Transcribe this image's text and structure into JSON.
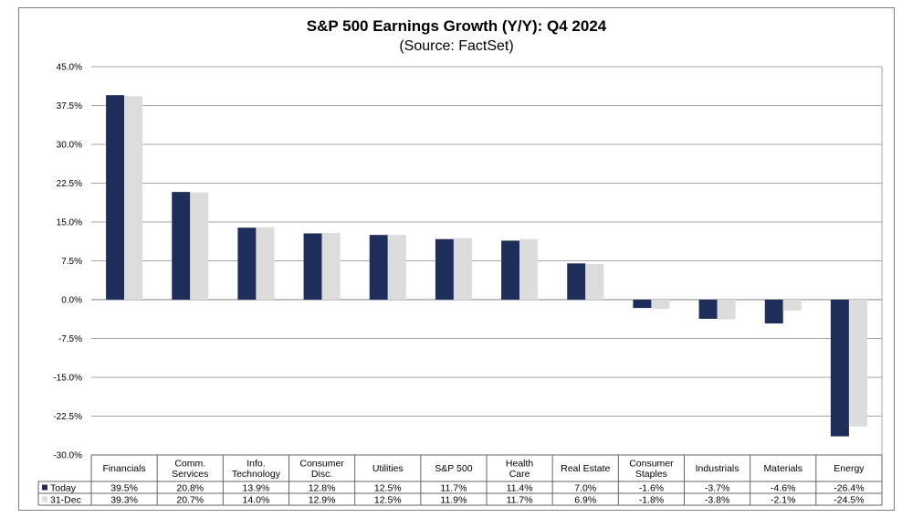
{
  "chart_data": {
    "type": "bar",
    "title": "S&P 500 Earnings Growth (Y/Y): Q4 2024",
    "subtitle": "(Source: FactSet)",
    "xlabel": "",
    "ylabel": "",
    "ylim": [
      -30,
      45
    ],
    "yticks": [
      "45.0%",
      "37.5%",
      "30.0%",
      "22.5%",
      "15.0%",
      "7.5%",
      "0.0%",
      "-7.5%",
      "-15.0%",
      "-22.5%",
      "-30.0%"
    ],
    "ytick_values": [
      45,
      37.5,
      30,
      22.5,
      15,
      7.5,
      0,
      -7.5,
      -15,
      -22.5,
      -30
    ],
    "grid": true,
    "legend": "table-bottom-left",
    "categories": [
      [
        "Financials"
      ],
      [
        "Comm.",
        "Services"
      ],
      [
        "Info.",
        "Technology"
      ],
      [
        "Consumer",
        "Disc."
      ],
      [
        "Utilities"
      ],
      [
        "S&P 500"
      ],
      [
        "Health",
        "Care"
      ],
      [
        "Real Estate"
      ],
      [
        "Consumer",
        "Staples"
      ],
      [
        "Industrials"
      ],
      [
        "Materials"
      ],
      [
        "Energy"
      ]
    ],
    "series": [
      {
        "name": "Today",
        "color": "#1f2d5a",
        "values": [
          39.5,
          20.8,
          13.9,
          12.8,
          12.5,
          11.7,
          11.4,
          7.0,
          -1.6,
          -3.7,
          -4.6,
          -26.4
        ],
        "labels": [
          "39.5%",
          "20.8%",
          "13.9%",
          "12.8%",
          "12.5%",
          "11.7%",
          "11.4%",
          "7.0%",
          "-1.6%",
          "-3.7%",
          "-4.6%",
          "-26.4%"
        ]
      },
      {
        "name": "31-Dec",
        "color": "#dcdcdc",
        "values": [
          39.3,
          20.7,
          14.0,
          12.9,
          12.5,
          11.9,
          11.7,
          6.9,
          -1.8,
          -3.8,
          -2.1,
          -24.5
        ],
        "labels": [
          "39.3%",
          "20.7%",
          "14.0%",
          "12.9%",
          "12.5%",
          "11.9%",
          "11.7%",
          "6.9%",
          "-1.8%",
          "-3.8%",
          "-2.1%",
          "-24.5%"
        ]
      }
    ]
  }
}
